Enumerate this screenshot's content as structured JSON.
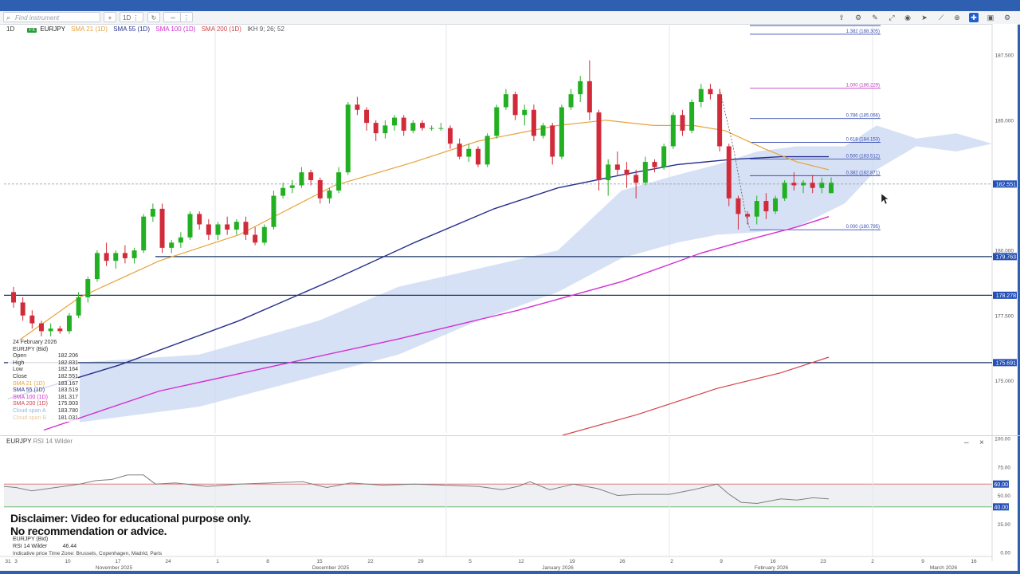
{
  "toolbar": {
    "search_placeholder": "Find instrument",
    "timeframe_button": "1D",
    "icons": [
      "plus-icon",
      "compare-icon",
      "refresh-icon",
      "more-icon",
      "share-icon",
      "indicators-icon",
      "draw-icon",
      "expand-icon",
      "eye-icon",
      "cursor-icon",
      "trend-icon",
      "crosshair-icon",
      "zoom-icon",
      "layout-icon",
      "camera-icon",
      "settings-icon"
    ]
  },
  "legend": {
    "timeframe": "1D",
    "fx_badge": "FX",
    "symbol": "EURJPY",
    "indicators": [
      {
        "label": "SMA 21 (1D)",
        "color": "#e8a33a"
      },
      {
        "label": "SMA 55 (1D)",
        "color": "#26308a"
      },
      {
        "label": "SMA 100 (1D)",
        "color": "#d42ed2"
      },
      {
        "label": "SMA 200 (1D)",
        "color": "#d2424a"
      },
      {
        "label": "IKH 9; 26; 52",
        "color": "#555555"
      }
    ]
  },
  "infobox": {
    "date": "24 February 2026",
    "title": "EURJPY (Bid)",
    "rows": [
      {
        "label": "Open",
        "value": "182.206",
        "color": "#333333"
      },
      {
        "label": "High",
        "value": "182.831",
        "color": "#333333"
      },
      {
        "label": "Low",
        "value": "182.164",
        "color": "#333333"
      },
      {
        "label": "Close",
        "value": "182.551",
        "color": "#333333"
      },
      {
        "label": "SMA 21 (1D)",
        "value": "183.167",
        "color": "#e8a33a"
      },
      {
        "label": "SMA 55 (1D)",
        "value": "183.519",
        "color": "#26308a"
      },
      {
        "label": "SMA 100 (1D)",
        "value": "181.317",
        "color": "#d42ed2"
      },
      {
        "label": "SMA 200 (1D)",
        "value": "175.903",
        "color": "#d2424a"
      },
      {
        "label": "Cloud span A",
        "value": "183.780",
        "color": "#9ab4e6"
      },
      {
        "label": "Cloud span B",
        "value": "181.031",
        "color": "#e8c8a0"
      }
    ]
  },
  "rsi": {
    "symbol": "EURJPY",
    "title": "RSI 14 Wilder",
    "info_symbol": "EURJPY (Bid)",
    "info_label": "RSI 14 Wilder",
    "info_value": "46.44",
    "levels": {
      "upper": "60.00",
      "lower": "40.00"
    },
    "y_ticks": [
      "100.00",
      "75.00",
      "50.00",
      "25.00",
      "0.00"
    ]
  },
  "disclaimer": [
    "Disclaimer: Video for educational purpose only.",
    "No recommendation or advice."
  ],
  "timezone": "Indicative price    Time Zone: Brussels, Copenhagen, Madrid, Paris",
  "colors": {
    "up": "#22b022",
    "down": "#d12b3a",
    "sma21": "#e8a33a",
    "sma55": "#26308a",
    "sma100": "#d42ed2",
    "sma200": "#d2424a",
    "cloud": "#c9d7f2",
    "fib": "#3a4fb5",
    "hline": "#1b3560",
    "label_bg": "#2450b8",
    "rsi_line": "#7f7f7f"
  },
  "chart_data": [
    {
      "type": "candlestick",
      "symbol": "EURJPY",
      "y_axis_ticks": [
        "187.500",
        "185.000",
        "180.000",
        "177.500",
        "175.000"
      ],
      "ylim": [
        172.9,
        188.7
      ],
      "x_axis": {
        "day_ticks": [
          "31",
          "3",
          "10",
          "17",
          "24",
          "1",
          "8",
          "15",
          "22",
          "29",
          "5",
          "12",
          "19",
          "26",
          "2",
          "9",
          "16",
          "23",
          "2",
          "9",
          "16"
        ],
        "month_labels": [
          "November 2025",
          "December 2025",
          "January 2026",
          "February 2026",
          "March 2026"
        ]
      },
      "last_price_label": "182.551",
      "horizontal_lines": [
        {
          "label": "179.763",
          "value": 179.763
        },
        {
          "label": "178.278",
          "value": 178.278
        },
        {
          "label": "175.691",
          "value": 175.691
        }
      ],
      "fibonacci": [
        {
          "label": "1.382 (188.305)",
          "value": 188.305
        },
        {
          "label": "1.000 (186.229)",
          "value": 186.229
        },
        {
          "label": "0.786 (185.066)",
          "value": 185.066
        },
        {
          "label": "0.618 (184.153)",
          "value": 184.153
        },
        {
          "label": "0.500 (183.512)",
          "value": 183.512
        },
        {
          "label": "0.382 (182.871)",
          "value": 182.871
        },
        {
          "label": "0.000 (180.795)",
          "value": 180.795
        }
      ],
      "candles": [
        [
          178.4,
          178.6,
          177.8,
          178.0
        ],
        [
          178.0,
          178.2,
          177.3,
          177.5
        ],
        [
          177.5,
          177.7,
          177.0,
          177.2
        ],
        [
          177.2,
          177.3,
          176.7,
          176.9
        ],
        [
          176.9,
          177.2,
          176.7,
          177.0
        ],
        [
          177.0,
          177.1,
          176.8,
          176.9
        ],
        [
          176.9,
          177.6,
          176.8,
          177.5
        ],
        [
          177.5,
          178.4,
          177.4,
          178.2
        ],
        [
          178.2,
          179.0,
          178.0,
          178.9
        ],
        [
          178.9,
          180.0,
          178.8,
          179.9
        ],
        [
          179.9,
          180.3,
          179.4,
          179.6
        ],
        [
          179.6,
          180.0,
          179.3,
          179.9
        ],
        [
          179.9,
          180.2,
          179.5,
          179.7
        ],
        [
          179.7,
          180.1,
          179.5,
          180.0
        ],
        [
          180.0,
          181.4,
          179.9,
          181.3
        ],
        [
          181.3,
          181.8,
          181.1,
          181.6
        ],
        [
          181.6,
          181.8,
          179.9,
          180.1
        ],
        [
          180.1,
          180.4,
          179.9,
          180.3
        ],
        [
          180.3,
          180.7,
          180.1,
          180.5
        ],
        [
          180.5,
          181.5,
          180.4,
          181.4
        ],
        [
          181.4,
          181.5,
          180.8,
          181.0
        ],
        [
          181.0,
          181.2,
          180.4,
          180.6
        ],
        [
          180.6,
          181.1,
          180.4,
          181.0
        ],
        [
          181.0,
          181.3,
          180.6,
          180.8
        ],
        [
          180.8,
          181.2,
          180.6,
          181.1
        ],
        [
          181.1,
          181.3,
          180.4,
          180.6
        ],
        [
          180.6,
          180.9,
          180.2,
          180.3
        ],
        [
          180.3,
          181.0,
          180.2,
          180.9
        ],
        [
          180.9,
          182.3,
          180.8,
          182.1
        ],
        [
          182.1,
          182.6,
          182.0,
          182.4
        ],
        [
          182.4,
          182.7,
          182.2,
          182.5
        ],
        [
          182.5,
          183.2,
          182.4,
          183.0
        ],
        [
          183.0,
          183.1,
          182.5,
          182.7
        ],
        [
          182.7,
          182.8,
          181.8,
          182.0
        ],
        [
          182.0,
          182.4,
          181.8,
          182.3
        ],
        [
          182.3,
          183.2,
          182.2,
          183.0
        ],
        [
          183.0,
          185.7,
          182.9,
          185.6
        ],
        [
          185.6,
          185.9,
          185.2,
          185.4
        ],
        [
          185.4,
          185.5,
          184.6,
          184.9
        ],
        [
          184.9,
          185.0,
          184.2,
          184.5
        ],
        [
          184.5,
          185.0,
          184.3,
          184.8
        ],
        [
          184.8,
          185.2,
          184.6,
          185.1
        ],
        [
          185.1,
          185.2,
          184.4,
          184.6
        ],
        [
          184.6,
          185.0,
          184.5,
          184.9
        ],
        [
          184.9,
          185.0,
          184.6,
          184.7
        ],
        [
          184.7,
          184.8,
          184.6,
          184.7
        ],
        [
          184.7,
          184.9,
          184.6,
          184.7
        ],
        [
          184.7,
          184.8,
          183.9,
          184.1
        ],
        [
          184.1,
          184.3,
          183.5,
          183.6
        ],
        [
          183.6,
          184.1,
          183.4,
          183.9
        ],
        [
          183.9,
          184.0,
          183.2,
          183.3
        ],
        [
          183.3,
          184.5,
          183.2,
          184.4
        ],
        [
          184.4,
          185.6,
          184.3,
          185.5
        ],
        [
          185.5,
          186.2,
          185.4,
          186.0
        ],
        [
          186.0,
          186.1,
          185.0,
          185.2
        ],
        [
          185.2,
          185.6,
          184.8,
          185.4
        ],
        [
          185.4,
          185.6,
          184.2,
          184.4
        ],
        [
          184.4,
          184.9,
          184.3,
          184.8
        ],
        [
          184.8,
          184.9,
          183.3,
          183.6
        ],
        [
          183.6,
          185.6,
          183.5,
          185.5
        ],
        [
          185.5,
          186.2,
          185.4,
          186.0
        ],
        [
          186.0,
          186.7,
          185.7,
          186.5
        ],
        [
          186.5,
          187.3,
          185.0,
          185.3
        ],
        [
          185.3,
          185.4,
          182.3,
          182.7
        ],
        [
          182.7,
          183.5,
          182.1,
          183.3
        ],
        [
          183.3,
          183.8,
          182.9,
          183.1
        ],
        [
          183.1,
          183.4,
          182.4,
          182.9
        ],
        [
          182.9,
          183.1,
          182.0,
          182.6
        ],
        [
          182.6,
          183.6,
          182.5,
          183.4
        ],
        [
          183.4,
          183.5,
          183.0,
          183.2
        ],
        [
          183.2,
          184.1,
          183.1,
          184.0
        ],
        [
          184.0,
          185.3,
          183.9,
          185.2
        ],
        [
          185.2,
          185.4,
          184.4,
          184.6
        ],
        [
          184.6,
          185.8,
          184.5,
          185.7
        ],
        [
          185.7,
          186.4,
          185.5,
          186.2
        ],
        [
          186.2,
          186.4,
          185.8,
          186.0
        ],
        [
          186.0,
          186.2,
          183.8,
          184.0
        ],
        [
          184.0,
          184.1,
          181.7,
          182.0
        ],
        [
          182.0,
          182.1,
          180.8,
          181.4
        ],
        [
          181.4,
          181.5,
          181.0,
          181.3
        ],
        [
          181.3,
          182.1,
          181.0,
          181.9
        ],
        [
          181.9,
          182.2,
          181.2,
          181.5
        ],
        [
          181.5,
          182.1,
          181.4,
          182.0
        ],
        [
          182.0,
          182.7,
          181.9,
          182.6
        ],
        [
          182.6,
          183.0,
          182.3,
          182.5
        ],
        [
          182.5,
          182.7,
          182.2,
          182.6
        ],
        [
          182.6,
          182.9,
          182.2,
          182.4
        ],
        [
          182.4,
          182.8,
          182.2,
          182.6
        ],
        [
          182.2,
          182.8,
          182.2,
          182.6
        ]
      ],
      "sma21": [
        [
          17,
          176.4
        ],
        [
          100,
          178.2
        ],
        [
          200,
          179.6
        ],
        [
          300,
          180.6
        ],
        [
          420,
          182.5
        ],
        [
          520,
          183.4
        ],
        [
          600,
          184.2
        ],
        [
          700,
          184.8
        ],
        [
          760,
          185.0
        ],
        [
          820,
          184.8
        ],
        [
          870,
          184.8
        ],
        [
          910,
          184.6
        ],
        [
          960,
          183.9
        ],
        [
          1000,
          183.4
        ],
        [
          1040,
          183.1
        ]
      ],
      "sma55": [
        [
          10,
          174.3
        ],
        [
          150,
          175.6
        ],
        [
          300,
          177.3
        ],
        [
          420,
          178.9
        ],
        [
          520,
          180.3
        ],
        [
          620,
          181.6
        ],
        [
          700,
          182.4
        ],
        [
          780,
          182.9
        ],
        [
          850,
          183.3
        ],
        [
          920,
          183.5
        ],
        [
          980,
          183.6
        ],
        [
          1040,
          183.6
        ]
      ],
      "sma100": [
        [
          55,
          173.1
        ],
        [
          200,
          174.6
        ],
        [
          350,
          175.6
        ],
        [
          500,
          176.6
        ],
        [
          650,
          177.7
        ],
        [
          780,
          178.8
        ],
        [
          880,
          179.9
        ],
        [
          950,
          180.5
        ],
        [
          1000,
          180.9
        ],
        [
          1040,
          181.3
        ]
      ],
      "sma200": [
        [
          706,
          172.9
        ],
        [
          800,
          173.7
        ],
        [
          900,
          174.7
        ],
        [
          980,
          175.3
        ],
        [
          1040,
          175.9
        ]
      ],
      "cloud_a": [
        [
          100,
          175.7
        ],
        [
          250,
          176.0
        ],
        [
          400,
          177.3
        ],
        [
          500,
          178.6
        ],
        [
          600,
          179.3
        ],
        [
          700,
          180.0
        ],
        [
          780,
          182.3
        ],
        [
          850,
          182.9
        ],
        [
          900,
          183.3
        ],
        [
          950,
          183.8
        ],
        [
          1000,
          184.0
        ],
        [
          1060,
          184.0
        ],
        [
          1100,
          184.8
        ],
        [
          1150,
          184.3
        ],
        [
          1200,
          184.5
        ],
        [
          1245,
          184.1
        ]
      ],
      "cloud_b": [
        [
          100,
          173.4
        ],
        [
          250,
          174.0
        ],
        [
          400,
          175.2
        ],
        [
          500,
          176.0
        ],
        [
          600,
          177.3
        ],
        [
          700,
          178.4
        ],
        [
          780,
          179.7
        ],
        [
          850,
          180.3
        ],
        [
          900,
          180.6
        ],
        [
          950,
          180.7
        ],
        [
          1000,
          180.9
        ],
        [
          1060,
          181.8
        ],
        [
          1100,
          183.1
        ],
        [
          1150,
          184.0
        ],
        [
          1200,
          183.8
        ],
        [
          1245,
          184.1
        ]
      ]
    },
    {
      "type": "line",
      "name": "RSI 14 Wilder",
      "ylim": [
        0,
        100
      ],
      "upper": 60,
      "lower": 40,
      "points": [
        [
          5,
          58
        ],
        [
          20,
          57
        ],
        [
          40,
          54
        ],
        [
          60,
          56
        ],
        [
          80,
          58
        ],
        [
          100,
          60
        ],
        [
          120,
          63
        ],
        [
          140,
          64
        ],
        [
          160,
          68
        ],
        [
          180,
          68
        ],
        [
          195,
          60
        ],
        [
          220,
          61
        ],
        [
          260,
          58
        ],
        [
          300,
          60
        ],
        [
          340,
          61
        ],
        [
          380,
          62
        ],
        [
          410,
          57
        ],
        [
          440,
          61
        ],
        [
          480,
          59
        ],
        [
          520,
          60
        ],
        [
          560,
          59
        ],
        [
          600,
          58
        ],
        [
          630,
          55
        ],
        [
          650,
          58
        ],
        [
          665,
          62
        ],
        [
          690,
          55
        ],
        [
          720,
          60
        ],
        [
          750,
          56
        ],
        [
          775,
          50
        ],
        [
          800,
          51
        ],
        [
          840,
          51
        ],
        [
          870,
          55
        ],
        [
          900,
          60
        ],
        [
          915,
          51
        ],
        [
          930,
          44
        ],
        [
          950,
          43
        ],
        [
          965,
          45
        ],
        [
          980,
          47
        ],
        [
          1000,
          46
        ],
        [
          1020,
          48
        ],
        [
          1040,
          47
        ]
      ]
    }
  ]
}
